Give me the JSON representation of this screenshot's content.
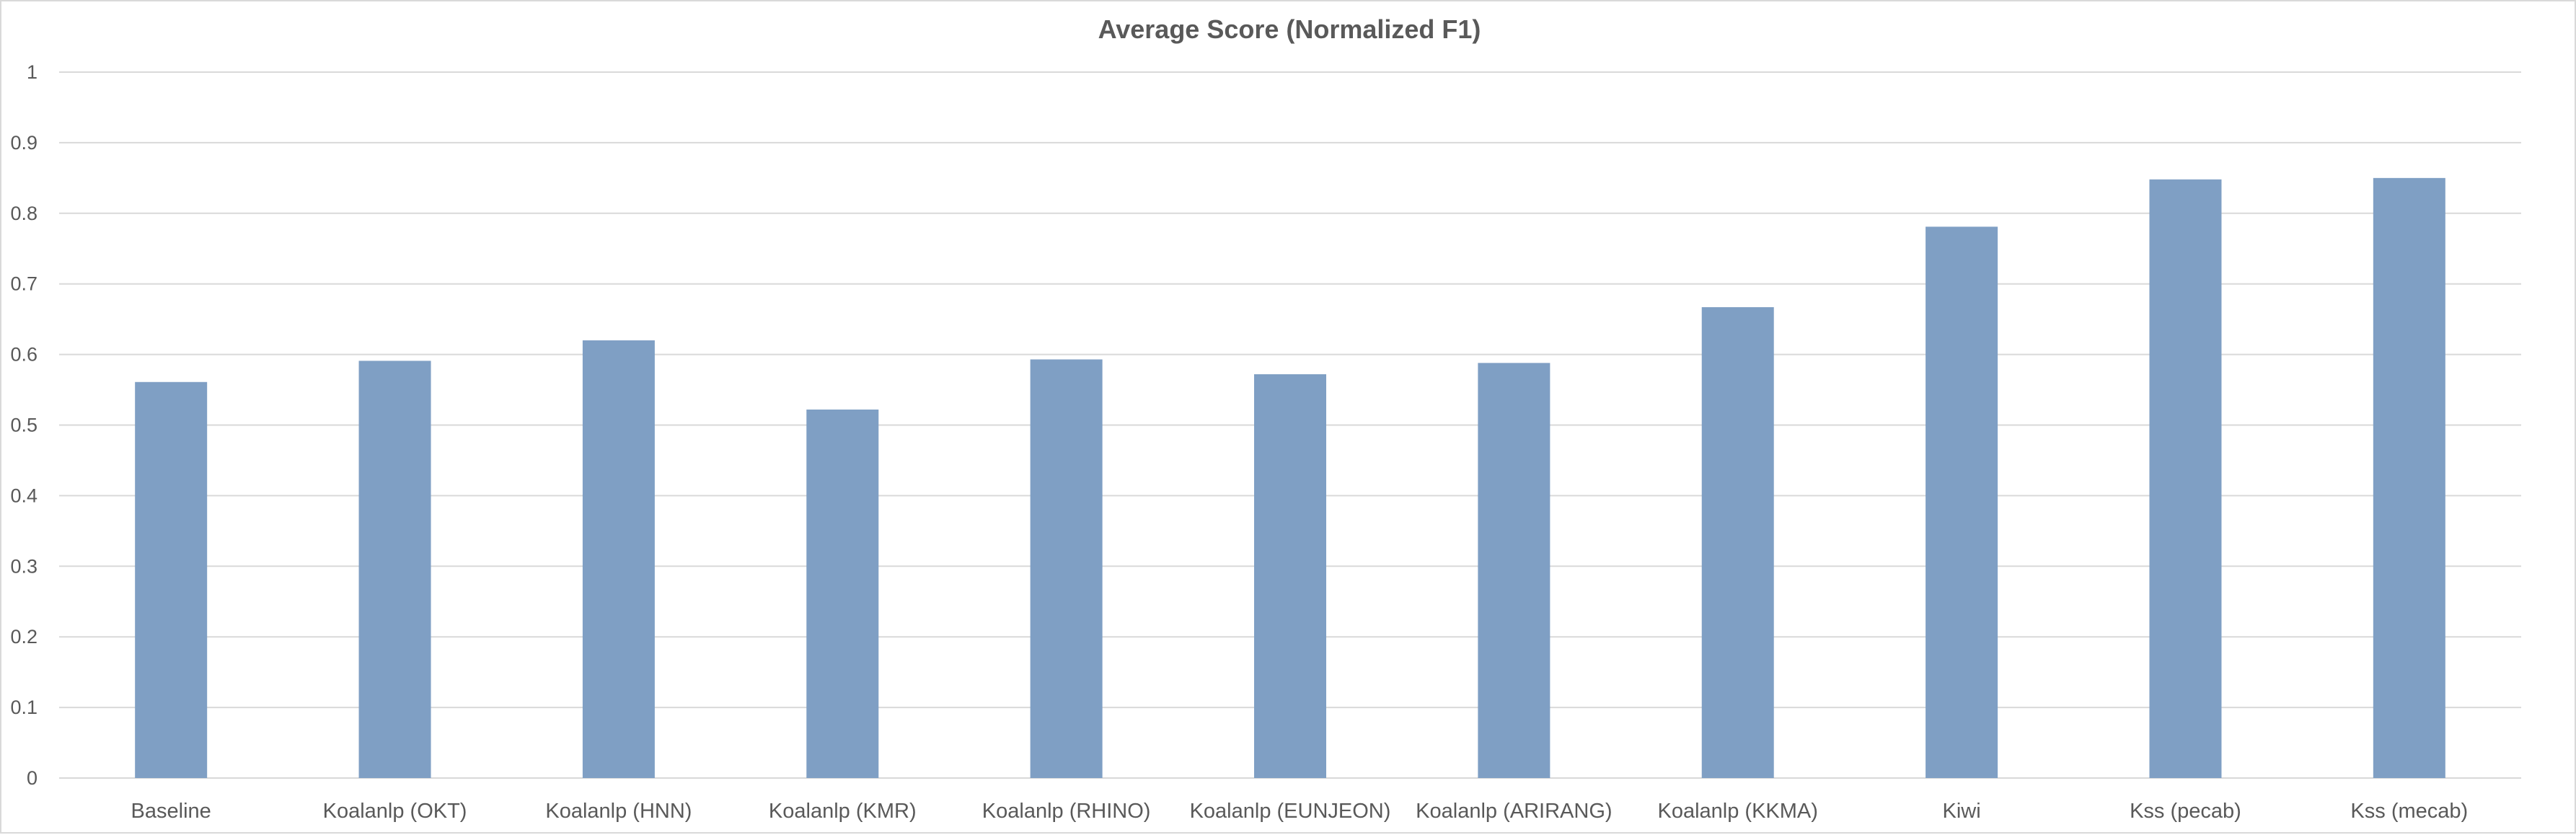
{
  "chart_data": {
    "type": "bar",
    "title": "Average Score (Normalized F1)",
    "xlabel": "",
    "ylabel": "",
    "categories": [
      "Baseline",
      "Koalanlp (OKT)",
      "Koalanlp (HNN)",
      "Koalanlp (KMR)",
      "Koalanlp (RHINO)",
      "Koalanlp (EUNJEON)",
      "Koalanlp (ARIRANG)",
      "Koalanlp (KKMA)",
      "Kiwi",
      "Kss (pecab)",
      "Kss (mecab)"
    ],
    "values": [
      0.561,
      0.591,
      0.62,
      0.522,
      0.593,
      0.572,
      0.588,
      0.667,
      0.781,
      0.848,
      0.85
    ],
    "yticks": [
      "0",
      "0.1",
      "0.2",
      "0.3",
      "0.4",
      "0.5",
      "0.6",
      "0.7",
      "0.8",
      "0.9",
      "1"
    ],
    "ylim": [
      0,
      1
    ],
    "grid": true,
    "legend": "none",
    "bar_color": "#7f9fc4"
  }
}
